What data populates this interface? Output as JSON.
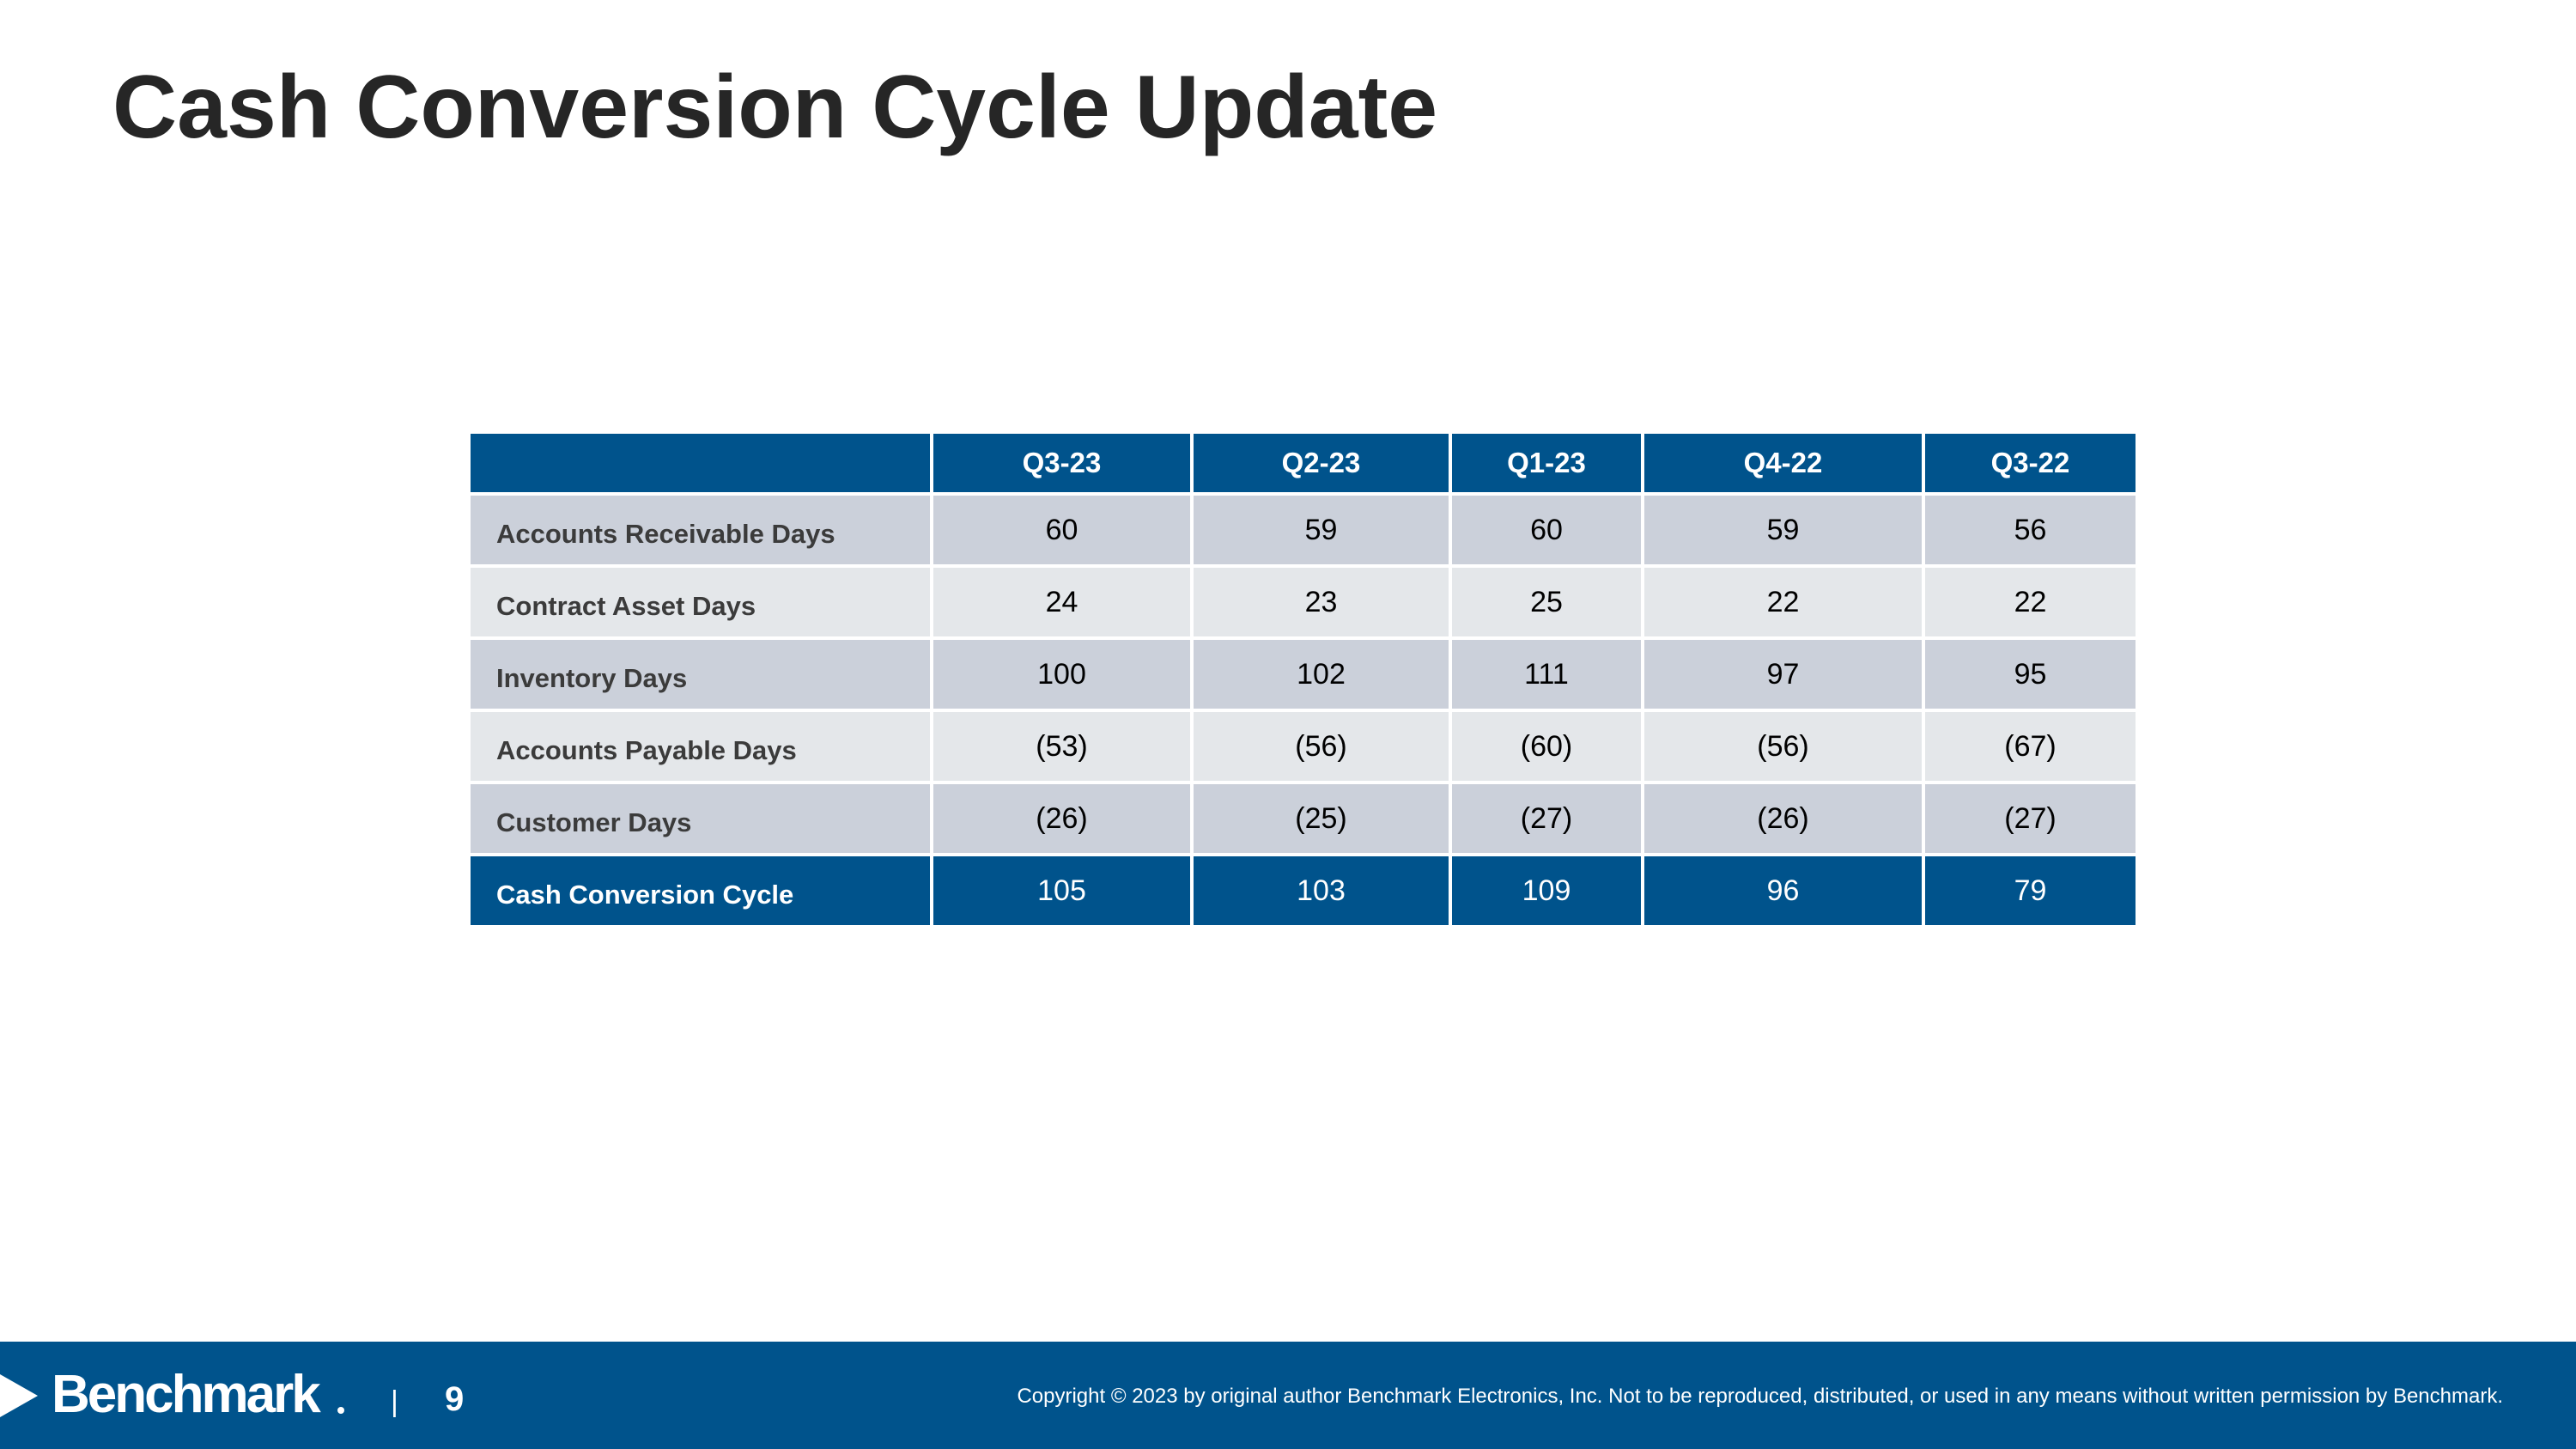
{
  "slide": {
    "title": "Cash Conversion Cycle Update"
  },
  "table": {
    "columns": [
      "Q3-23",
      "Q2-23",
      "Q1-23",
      "Q4-22",
      "Q3-22"
    ],
    "rows": [
      {
        "label": "Accounts Receivable Days",
        "values": [
          "60",
          "59",
          "60",
          "59",
          "56"
        ]
      },
      {
        "label": "Contract Asset Days",
        "values": [
          "24",
          "23",
          "25",
          "22",
          "22"
        ]
      },
      {
        "label": "Inventory Days",
        "values": [
          "100",
          "102",
          "111",
          "97",
          "95"
        ]
      },
      {
        "label": "Accounts Payable Days",
        "values": [
          "(53)",
          "(56)",
          "(60)",
          "(56)",
          "(67)"
        ]
      },
      {
        "label": "Customer Days",
        "values": [
          "(26)",
          "(25)",
          "(27)",
          "(26)",
          "(27)"
        ]
      },
      {
        "label": "Cash Conversion Cycle",
        "values": [
          "105",
          "103",
          "109",
          "96",
          "79"
        ]
      }
    ]
  },
  "footer": {
    "logo_text": "Benchmark",
    "separator": "|",
    "page_number": "9",
    "copyright": "Copyright © 2023 by original author Benchmark Electronics, Inc. Not to be reproduced, distributed, or used in any means without written permission by Benchmark."
  },
  "colors": {
    "brand_blue": "#00538C",
    "row_dark": "#CBD0DA",
    "row_light": "#E4E7EA"
  }
}
